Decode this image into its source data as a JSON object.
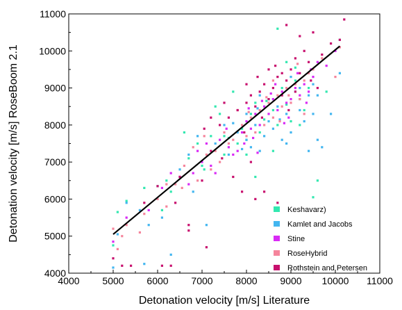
{
  "chart_data": {
    "type": "scatter",
    "title": "",
    "xlabel": "Detonation velocity [m/s] Literature",
    "ylabel": "Detonation velocity [m/s] RoseBoom 2.1",
    "xlim": [
      4000,
      11000
    ],
    "ylim": [
      4000,
      11000
    ],
    "x_ticks": [
      4000,
      5000,
      6000,
      7000,
      8000,
      9000,
      10000,
      11000
    ],
    "y_ticks": [
      4000,
      5000,
      6000,
      7000,
      8000,
      9000,
      10000,
      11000
    ],
    "grid": false,
    "legend_position": "bottom-right",
    "marker": "square",
    "series": [
      {
        "name": "Keshavarz)",
        "color": "#33e8b0",
        "points": [
          [
            5000,
            4750
          ],
          [
            5100,
            5650
          ],
          [
            5300,
            5950
          ],
          [
            5700,
            6300
          ],
          [
            6000,
            6350
          ],
          [
            6200,
            6500
          ],
          [
            6500,
            6600
          ],
          [
            6700,
            7100
          ],
          [
            6900,
            7500
          ],
          [
            7000,
            6900
          ],
          [
            7200,
            7700
          ],
          [
            7400,
            8300
          ],
          [
            7500,
            7200
          ],
          [
            7600,
            7650
          ],
          [
            7800,
            7500
          ],
          [
            7900,
            7900
          ],
          [
            8000,
            7200
          ],
          [
            8100,
            8300
          ],
          [
            8200,
            8600
          ],
          [
            8300,
            7800
          ],
          [
            8400,
            8150
          ],
          [
            8500,
            8700
          ],
          [
            8600,
            8400
          ],
          [
            8700,
            8000
          ],
          [
            8800,
            9000
          ],
          [
            8900,
            8550
          ],
          [
            9000,
            8100
          ],
          [
            9100,
            9200
          ],
          [
            9200,
            8700
          ],
          [
            9300,
            8400
          ],
          [
            9500,
            6050
          ],
          [
            9600,
            6500
          ],
          [
            8700,
            10600
          ],
          [
            9100,
            9550
          ],
          [
            7500,
            7700
          ],
          [
            8200,
            6600
          ],
          [
            6300,
            6200
          ],
          [
            9800,
            8900
          ],
          [
            10100,
            10300
          ],
          [
            8900,
            9700
          ],
          [
            6100,
            5700
          ],
          [
            6600,
            7800
          ],
          [
            7700,
            8900
          ],
          [
            8600,
            7300
          ],
          [
            9400,
            9000
          ],
          [
            8000,
            7600
          ],
          [
            7300,
            8500
          ],
          [
            8450,
            8650
          ],
          [
            7050,
            6800
          ],
          [
            9200,
            8000
          ]
        ]
      },
      {
        "name": "Kamlet and Jacobs",
        "color": "#43b6f0",
        "points": [
          [
            5000,
            4150
          ],
          [
            5100,
            5050
          ],
          [
            5300,
            5900
          ],
          [
            5600,
            5700
          ],
          [
            5700,
            4250
          ],
          [
            5800,
            5300
          ],
          [
            6100,
            5500
          ],
          [
            6300,
            4500
          ],
          [
            6800,
            6200
          ],
          [
            7100,
            5300
          ],
          [
            7300,
            7500
          ],
          [
            7600,
            7200
          ],
          [
            7800,
            7800
          ],
          [
            8000,
            7600
          ],
          [
            8100,
            7400
          ],
          [
            8200,
            8000
          ],
          [
            8300,
            7300
          ],
          [
            8400,
            7700
          ],
          [
            8500,
            8100
          ],
          [
            8600,
            7900
          ],
          [
            8700,
            8500
          ],
          [
            8800,
            7600
          ],
          [
            8900,
            8300
          ],
          [
            9000,
            7800
          ],
          [
            9100,
            8900
          ],
          [
            9200,
            8400
          ],
          [
            9300,
            8100
          ],
          [
            9400,
            8800
          ],
          [
            9500,
            8300
          ],
          [
            9600,
            7600
          ],
          [
            9700,
            7400
          ],
          [
            9900,
            8300
          ],
          [
            10100,
            9400
          ],
          [
            9500,
            9100
          ],
          [
            8000,
            8300
          ],
          [
            7700,
            8050
          ],
          [
            8300,
            8800
          ],
          [
            7500,
            8000
          ],
          [
            6900,
            7700
          ],
          [
            6700,
            7200
          ],
          [
            9000,
            9300
          ],
          [
            8600,
            8700
          ],
          [
            8900,
            7500
          ],
          [
            9200,
            9000
          ],
          [
            9600,
            8800
          ],
          [
            8250,
            8450
          ],
          [
            8750,
            8150
          ],
          [
            7900,
            7350
          ],
          [
            6500,
            6800
          ],
          [
            9400,
            7300
          ]
        ]
      },
      {
        "name": "Stine",
        "color": "#d92af5",
        "points": [
          [
            5000,
            4850
          ],
          [
            5300,
            5500
          ],
          [
            5800,
            5700
          ],
          [
            6100,
            6300
          ],
          [
            6500,
            6600
          ],
          [
            6800,
            6700
          ],
          [
            7000,
            7000
          ],
          [
            7200,
            6900
          ],
          [
            7400,
            7600
          ],
          [
            7600,
            7400
          ],
          [
            7800,
            7300
          ],
          [
            7900,
            7800
          ],
          [
            8000,
            8100
          ],
          [
            8100,
            7900
          ],
          [
            8200,
            8300
          ],
          [
            8300,
            8000
          ],
          [
            8400,
            8500
          ],
          [
            8500,
            8300
          ],
          [
            8600,
            8700
          ],
          [
            8700,
            8400
          ],
          [
            8800,
            8900
          ],
          [
            8900,
            8600
          ],
          [
            9000,
            8700
          ],
          [
            9100,
            9000
          ],
          [
            9200,
            8800
          ],
          [
            9300,
            9100
          ],
          [
            9400,
            8900
          ],
          [
            9500,
            9300
          ],
          [
            9600,
            9700
          ],
          [
            9800,
            9600
          ],
          [
            10000,
            10000
          ],
          [
            6700,
            6400
          ],
          [
            7100,
            7500
          ],
          [
            7700,
            7200
          ],
          [
            8150,
            7650
          ],
          [
            8550,
            8850
          ],
          [
            8950,
            8200
          ],
          [
            9350,
            8600
          ],
          [
            7300,
            6700
          ],
          [
            6300,
            6700
          ],
          [
            8650,
            9100
          ],
          [
            8050,
            8450
          ],
          [
            7550,
            7900
          ],
          [
            9150,
            9400
          ],
          [
            8850,
            8050
          ],
          [
            7950,
            7500
          ],
          [
            8350,
            8650
          ],
          [
            9450,
            9500
          ],
          [
            6900,
            7300
          ],
          [
            8250,
            7250
          ]
        ]
      },
      {
        "name": "RoseHybrid",
        "color": "#f5859c",
        "points": [
          [
            5000,
            5200
          ],
          [
            5100,
            4650
          ],
          [
            5200,
            5000
          ],
          [
            5300,
            5300
          ],
          [
            5600,
            5100
          ],
          [
            6000,
            6000
          ],
          [
            6200,
            5800
          ],
          [
            6400,
            6400
          ],
          [
            6600,
            6900
          ],
          [
            6900,
            6500
          ],
          [
            7100,
            7200
          ],
          [
            7300,
            7300
          ],
          [
            7500,
            7800
          ],
          [
            7700,
            7600
          ],
          [
            7900,
            8000
          ],
          [
            8000,
            7700
          ],
          [
            8100,
            8200
          ],
          [
            8200,
            7800
          ],
          [
            8300,
            8400
          ],
          [
            8400,
            8000
          ],
          [
            8500,
            8600
          ],
          [
            8600,
            8200
          ],
          [
            8700,
            8800
          ],
          [
            8800,
            8500
          ],
          [
            8900,
            9000
          ],
          [
            9000,
            8600
          ],
          [
            9100,
            9100
          ],
          [
            9200,
            8700
          ],
          [
            9300,
            9200
          ],
          [
            9400,
            9400
          ],
          [
            9500,
            9500
          ],
          [
            9700,
            9800
          ],
          [
            10100,
            10100
          ],
          [
            10000,
            9300
          ],
          [
            6800,
            7400
          ],
          [
            7400,
            7000
          ],
          [
            7800,
            8400
          ],
          [
            8600,
            9200
          ],
          [
            9300,
            8300
          ],
          [
            6200,
            6400
          ],
          [
            7200,
            6800
          ],
          [
            7600,
            7500
          ],
          [
            8050,
            8350
          ],
          [
            8450,
            8750
          ],
          [
            8950,
            8800
          ],
          [
            5700,
            5600
          ],
          [
            6550,
            6300
          ],
          [
            8750,
            8100
          ],
          [
            9150,
            9650
          ],
          [
            7050,
            7700
          ]
        ]
      },
      {
        "name": "Rothstein and Petersen",
        "color": "#c8106e",
        "points": [
          [
            5000,
            4400
          ],
          [
            5200,
            4200
          ],
          [
            5400,
            4200
          ],
          [
            5700,
            5900
          ],
          [
            6100,
            4200
          ],
          [
            6300,
            4200
          ],
          [
            6500,
            6600
          ],
          [
            6700,
            5300
          ],
          [
            6700,
            5150
          ],
          [
            7000,
            6500
          ],
          [
            7100,
            4700
          ],
          [
            7200,
            7300
          ],
          [
            7400,
            8000
          ],
          [
            7600,
            8200
          ],
          [
            7800,
            8400
          ],
          [
            8000,
            8600
          ],
          [
            8100,
            8800
          ],
          [
            8200,
            8500
          ],
          [
            8300,
            8900
          ],
          [
            8400,
            9100
          ],
          [
            8500,
            8700
          ],
          [
            8600,
            9000
          ],
          [
            8700,
            9300
          ],
          [
            8800,
            8800
          ],
          [
            8900,
            9200
          ],
          [
            9000,
            9500
          ],
          [
            9100,
            8900
          ],
          [
            9200,
            9400
          ],
          [
            9300,
            10000
          ],
          [
            9400,
            9700
          ],
          [
            9500,
            10500
          ],
          [
            9700,
            9900
          ],
          [
            9900,
            10200
          ],
          [
            10200,
            10850
          ],
          [
            10100,
            10300
          ],
          [
            8900,
            10700
          ],
          [
            9200,
            10400
          ],
          [
            8000,
            9100
          ],
          [
            7500,
            8600
          ],
          [
            7200,
            8200
          ],
          [
            7900,
            6200
          ],
          [
            8200,
            6000
          ],
          [
            8400,
            6200
          ],
          [
            8700,
            5900
          ],
          [
            6000,
            6350
          ],
          [
            8100,
            7000
          ],
          [
            8500,
            9500
          ],
          [
            8800,
            9400
          ],
          [
            9100,
            9800
          ],
          [
            7700,
            6600
          ],
          [
            8650,
            9600
          ],
          [
            8350,
            8200
          ],
          [
            7950,
            7800
          ],
          [
            9450,
            9200
          ],
          [
            9600,
            9000
          ],
          [
            8250,
            9300
          ],
          [
            7450,
            7100
          ],
          [
            8950,
            8400
          ],
          [
            7050,
            7900
          ],
          [
            6400,
            5900
          ]
        ]
      }
    ],
    "fit_line": {
      "x": [
        5000,
        10100
      ],
      "y": [
        5050,
        10130
      ],
      "color": "#000000"
    }
  }
}
